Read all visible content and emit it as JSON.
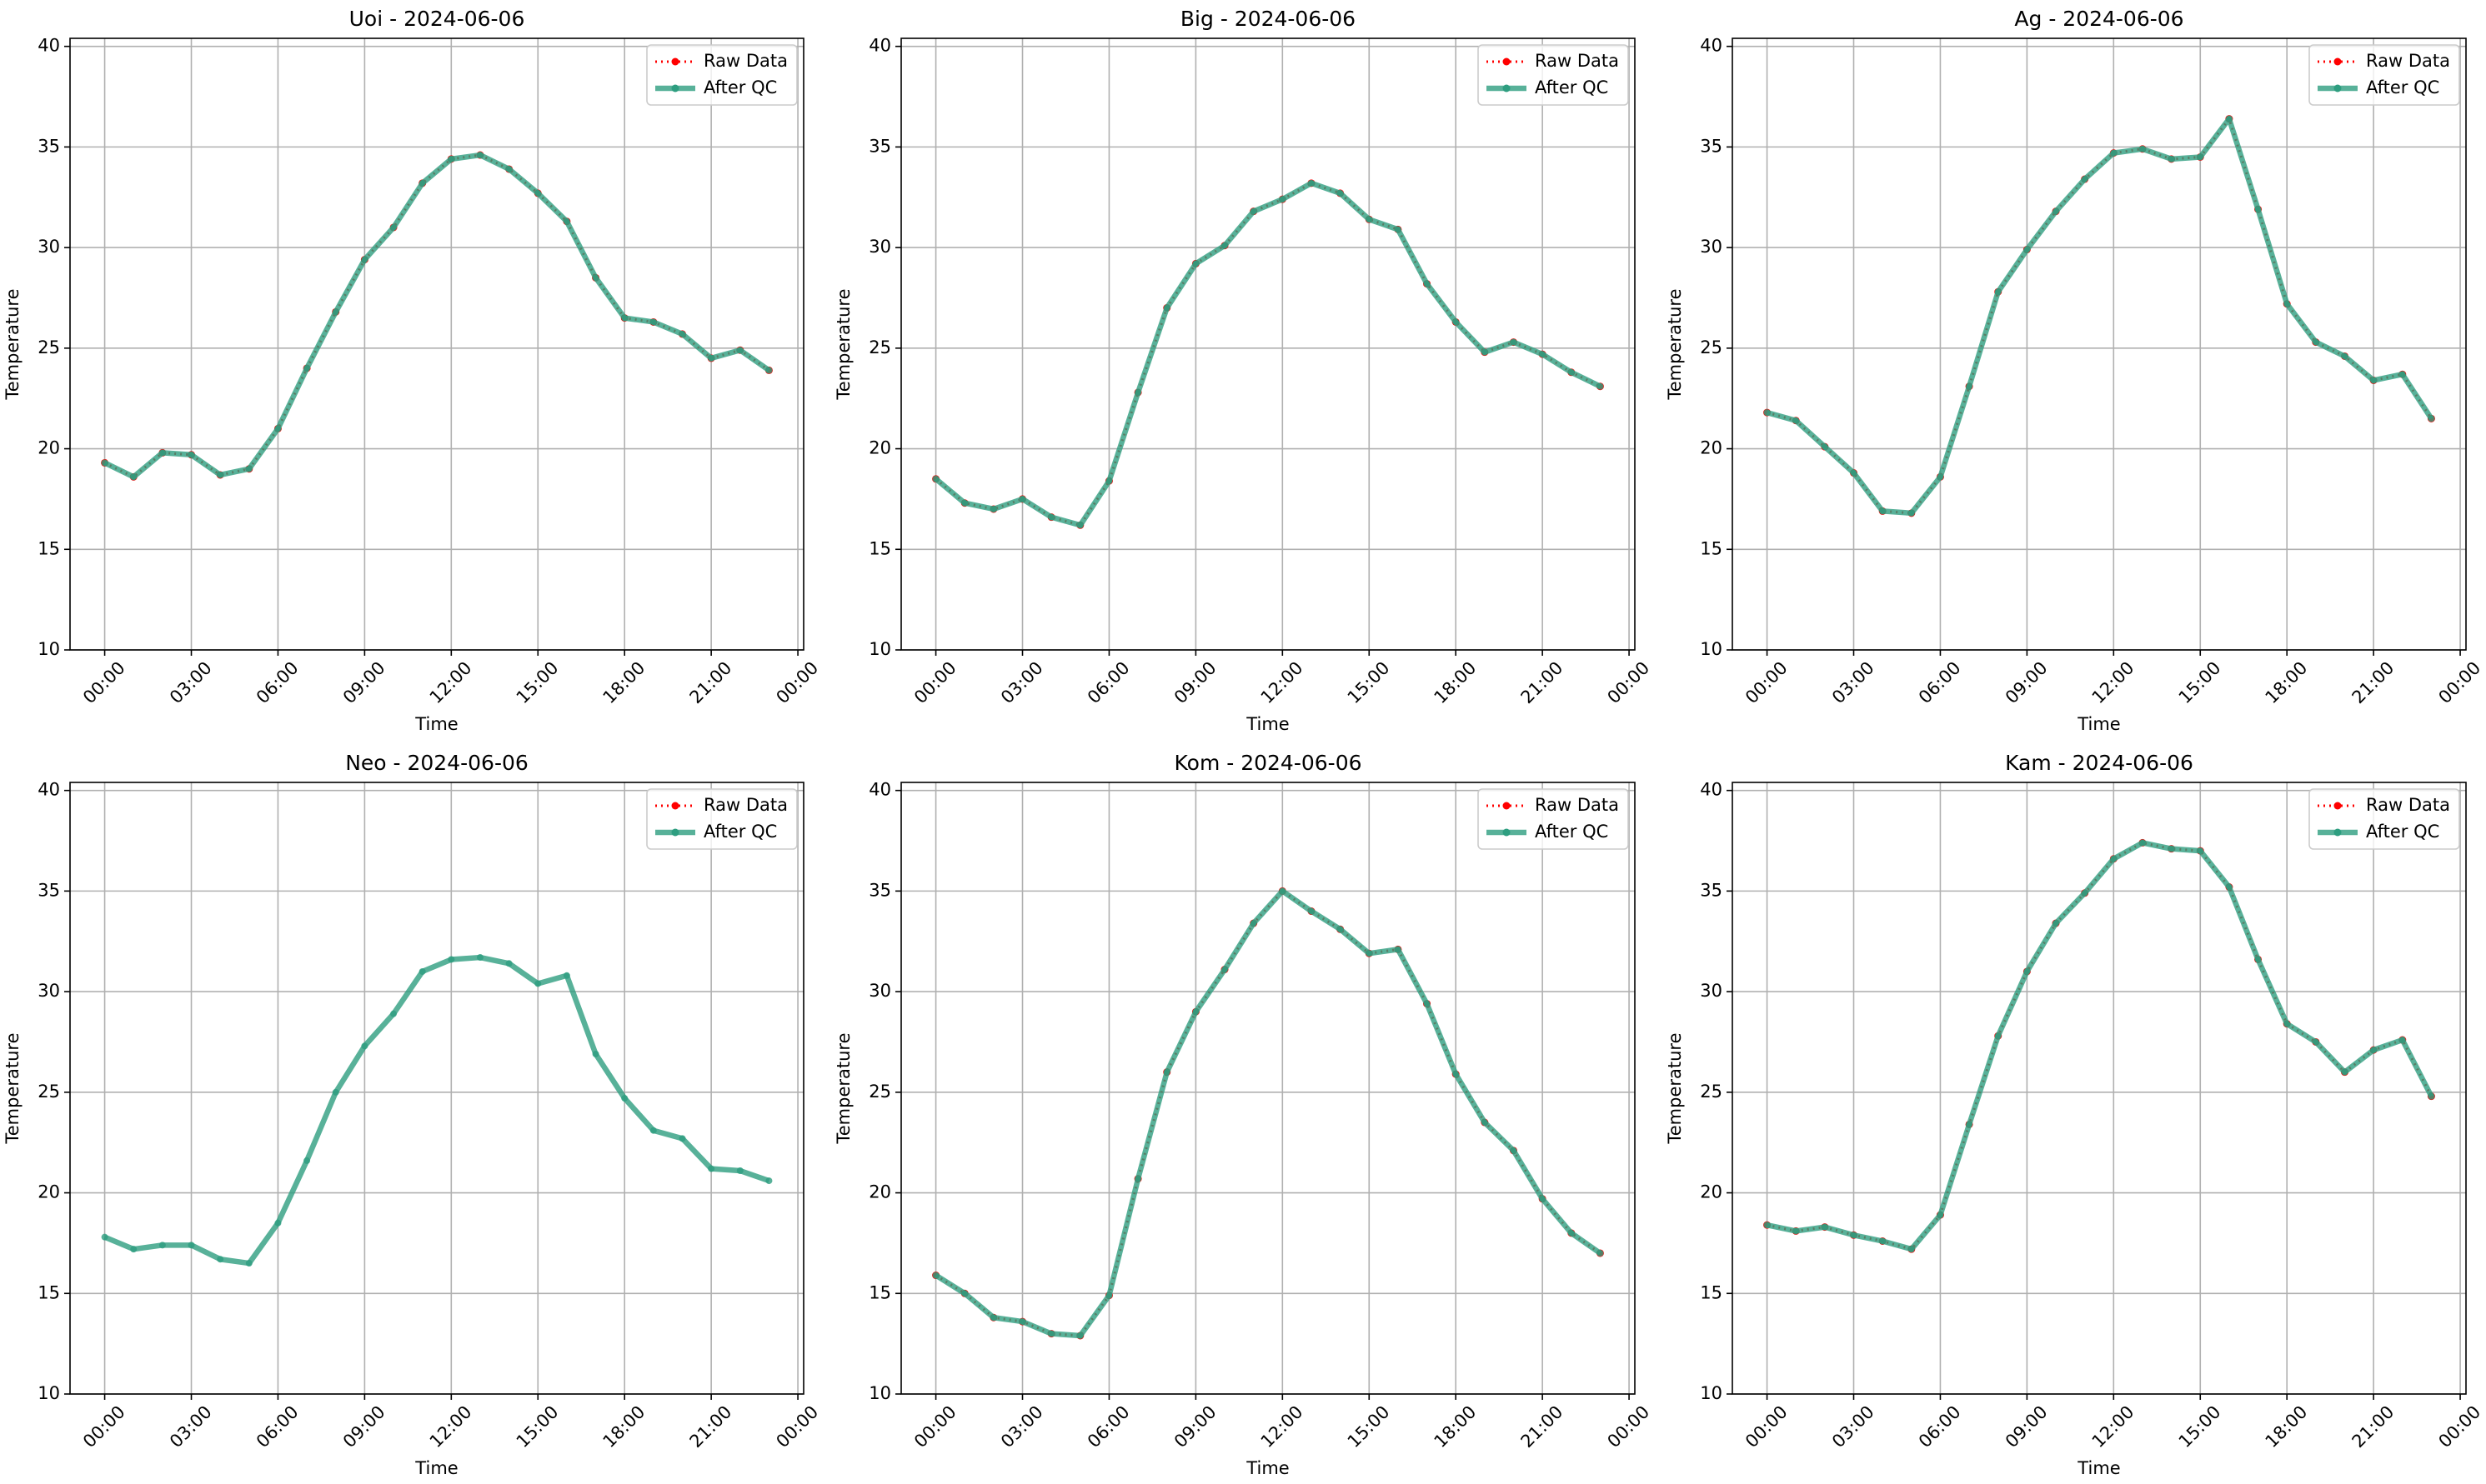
{
  "chart_data": [
    {
      "type": "line",
      "title": "Uoi - 2024-06-06",
      "xlabel": "Time",
      "ylabel": "Temperature",
      "x": [
        0,
        1,
        2,
        3,
        4,
        5,
        6,
        7,
        8,
        9,
        10,
        11,
        12,
        13,
        14,
        15,
        16,
        17,
        18,
        19,
        20,
        21,
        22,
        23
      ],
      "series": [
        {
          "name": "Raw Data",
          "color": "#ff0000",
          "style": "dotted",
          "values": [
            19.3,
            18.6,
            19.8,
            19.7,
            18.7,
            19.0,
            21.0,
            24.0,
            26.8,
            29.4,
            31.0,
            33.2,
            34.4,
            34.6,
            33.9,
            32.7,
            31.3,
            28.5,
            26.5,
            26.3,
            25.7,
            24.5,
            24.9,
            23.9
          ]
        },
        {
          "name": "After QC",
          "color": "#2e9e80",
          "style": "solid",
          "values": [
            19.3,
            18.6,
            19.8,
            19.7,
            18.7,
            19.0,
            21.0,
            24.0,
            26.8,
            29.4,
            31.0,
            33.2,
            34.4,
            34.6,
            33.9,
            32.7,
            31.3,
            28.5,
            26.5,
            26.3,
            25.7,
            24.5,
            24.9,
            23.9
          ]
        }
      ],
      "xlim": [
        -1.2,
        24.2
      ],
      "xticks": [
        {
          "value": 0,
          "label": "00:00"
        },
        {
          "value": 3,
          "label": "03:00"
        },
        {
          "value": 6,
          "label": "06:00"
        },
        {
          "value": 9,
          "label": "09:00"
        },
        {
          "value": 12,
          "label": "12:00"
        },
        {
          "value": 15,
          "label": "15:00"
        },
        {
          "value": 18,
          "label": "18:00"
        },
        {
          "value": 21,
          "label": "21:00"
        },
        {
          "value": 24,
          "label": "00:00"
        }
      ],
      "ylim": [
        10,
        40.4
      ],
      "yticks": [
        10,
        15,
        20,
        25,
        30,
        35,
        40
      ],
      "grid": true,
      "legend": "upper right"
    },
    {
      "type": "line",
      "title": "Big - 2024-06-06",
      "xlabel": "Time",
      "ylabel": "Temperature",
      "x": [
        0,
        1,
        2,
        3,
        4,
        5,
        6,
        7,
        8,
        9,
        10,
        11,
        12,
        13,
        14,
        15,
        16,
        17,
        18,
        19,
        20,
        21,
        22,
        23
      ],
      "series": [
        {
          "name": "Raw Data",
          "color": "#ff0000",
          "style": "dotted",
          "values": [
            18.5,
            17.3,
            17.0,
            17.5,
            16.6,
            16.2,
            18.4,
            22.8,
            27.0,
            29.2,
            30.1,
            31.8,
            32.4,
            33.2,
            32.7,
            31.4,
            30.9,
            28.2,
            26.3,
            24.8,
            25.3,
            24.7,
            23.8,
            23.1
          ]
        },
        {
          "name": "After QC",
          "color": "#2e9e80",
          "style": "solid",
          "values": [
            18.5,
            17.3,
            17.0,
            17.5,
            16.6,
            16.2,
            18.4,
            22.8,
            27.0,
            29.2,
            30.1,
            31.8,
            32.4,
            33.2,
            32.7,
            31.4,
            30.9,
            28.2,
            26.3,
            24.8,
            25.3,
            24.7,
            23.8,
            23.1
          ]
        }
      ],
      "xlim": [
        -1.2,
        24.2
      ],
      "xticks": [
        {
          "value": 0,
          "label": "00:00"
        },
        {
          "value": 3,
          "label": "03:00"
        },
        {
          "value": 6,
          "label": "06:00"
        },
        {
          "value": 9,
          "label": "09:00"
        },
        {
          "value": 12,
          "label": "12:00"
        },
        {
          "value": 15,
          "label": "15:00"
        },
        {
          "value": 18,
          "label": "18:00"
        },
        {
          "value": 21,
          "label": "21:00"
        },
        {
          "value": 24,
          "label": "00:00"
        }
      ],
      "ylim": [
        10,
        40.4
      ],
      "yticks": [
        10,
        15,
        20,
        25,
        30,
        35,
        40
      ],
      "grid": true,
      "legend": "upper right"
    },
    {
      "type": "line",
      "title": "Ag - 2024-06-06",
      "xlabel": "Time",
      "ylabel": "Temperature",
      "x": [
        0,
        1,
        2,
        3,
        4,
        5,
        6,
        7,
        8,
        9,
        10,
        11,
        12,
        13,
        14,
        15,
        16,
        17,
        18,
        19,
        20,
        21,
        22,
        23
      ],
      "series": [
        {
          "name": "Raw Data",
          "color": "#ff0000",
          "style": "dotted",
          "values": [
            21.8,
            21.4,
            20.1,
            18.8,
            16.9,
            16.8,
            18.6,
            23.1,
            27.8,
            29.9,
            31.8,
            33.4,
            34.7,
            34.9,
            34.4,
            34.5,
            36.4,
            31.9,
            27.2,
            25.3,
            24.6,
            23.4,
            23.7,
            21.5
          ]
        },
        {
          "name": "After QC",
          "color": "#2e9e80",
          "style": "solid",
          "values": [
            21.8,
            21.4,
            20.1,
            18.8,
            16.9,
            16.8,
            18.6,
            23.1,
            27.8,
            29.9,
            31.8,
            33.4,
            34.7,
            34.9,
            34.4,
            34.5,
            36.4,
            31.9,
            27.2,
            25.3,
            24.6,
            23.4,
            23.7,
            21.5
          ]
        }
      ],
      "xlim": [
        -1.2,
        24.2
      ],
      "xticks": [
        {
          "value": 0,
          "label": "00:00"
        },
        {
          "value": 3,
          "label": "03:00"
        },
        {
          "value": 6,
          "label": "06:00"
        },
        {
          "value": 9,
          "label": "09:00"
        },
        {
          "value": 12,
          "label": "12:00"
        },
        {
          "value": 15,
          "label": "15:00"
        },
        {
          "value": 18,
          "label": "18:00"
        },
        {
          "value": 21,
          "label": "21:00"
        },
        {
          "value": 24,
          "label": "00:00"
        }
      ],
      "ylim": [
        10,
        40.4
      ],
      "yticks": [
        10,
        15,
        20,
        25,
        30,
        35,
        40
      ],
      "grid": true,
      "legend": "upper right"
    },
    {
      "type": "line",
      "title": "Neo - 2024-06-06",
      "xlabel": "Time",
      "ylabel": "Temperature",
      "x": [
        0,
        1,
        2,
        3,
        4,
        5,
        6,
        7,
        8,
        9,
        10,
        11,
        12,
        13,
        14,
        15,
        16,
        17,
        18,
        19,
        20,
        21,
        22,
        23
      ],
      "series": [
        {
          "name": "Raw Data",
          "color": "#ff0000",
          "style": "dotted",
          "values": [
            null,
            null,
            null,
            null,
            null,
            null,
            null,
            null,
            null,
            null,
            null,
            null,
            null,
            null,
            null,
            null,
            null,
            null,
            null,
            null,
            null,
            null,
            null,
            null
          ]
        },
        {
          "name": "After QC",
          "color": "#2e9e80",
          "style": "solid",
          "values": [
            17.8,
            17.2,
            17.4,
            17.4,
            16.7,
            16.5,
            18.5,
            21.6,
            25.0,
            27.3,
            28.9,
            31.0,
            31.6,
            31.7,
            31.4,
            30.4,
            30.8,
            26.9,
            24.7,
            23.1,
            22.7,
            21.2,
            21.1,
            20.6
          ]
        }
      ],
      "xlim": [
        -1.2,
        24.2
      ],
      "xticks": [
        {
          "value": 0,
          "label": "00:00"
        },
        {
          "value": 3,
          "label": "03:00"
        },
        {
          "value": 6,
          "label": "06:00"
        },
        {
          "value": 9,
          "label": "09:00"
        },
        {
          "value": 12,
          "label": "12:00"
        },
        {
          "value": 15,
          "label": "15:00"
        },
        {
          "value": 18,
          "label": "18:00"
        },
        {
          "value": 21,
          "label": "21:00"
        },
        {
          "value": 24,
          "label": "00:00"
        }
      ],
      "ylim": [
        10,
        40.4
      ],
      "yticks": [
        10,
        15,
        20,
        25,
        30,
        35,
        40
      ],
      "grid": true,
      "legend": "upper right"
    },
    {
      "type": "line",
      "title": "Kom - 2024-06-06",
      "xlabel": "Time",
      "ylabel": "Temperature",
      "x": [
        0,
        1,
        2,
        3,
        4,
        5,
        6,
        7,
        8,
        9,
        10,
        11,
        12,
        13,
        14,
        15,
        16,
        17,
        18,
        19,
        20,
        21,
        22,
        23
      ],
      "series": [
        {
          "name": "Raw Data",
          "color": "#ff0000",
          "style": "dotted",
          "values": [
            15.9,
            15.0,
            13.8,
            13.6,
            13.0,
            12.9,
            14.9,
            20.7,
            26.0,
            29.0,
            31.1,
            33.4,
            35.0,
            34.0,
            33.1,
            31.9,
            32.1,
            29.4,
            25.9,
            23.5,
            22.1,
            19.7,
            18.0,
            17.0
          ]
        },
        {
          "name": "After QC",
          "color": "#2e9e80",
          "style": "solid",
          "values": [
            15.9,
            15.0,
            13.8,
            13.6,
            13.0,
            12.9,
            14.9,
            20.7,
            26.0,
            29.0,
            31.1,
            33.4,
            35.0,
            34.0,
            33.1,
            31.9,
            32.1,
            29.4,
            25.9,
            23.5,
            22.1,
            19.7,
            18.0,
            17.0
          ]
        }
      ],
      "xlim": [
        -1.2,
        24.2
      ],
      "xticks": [
        {
          "value": 0,
          "label": "00:00"
        },
        {
          "value": 3,
          "label": "03:00"
        },
        {
          "value": 6,
          "label": "06:00"
        },
        {
          "value": 9,
          "label": "09:00"
        },
        {
          "value": 12,
          "label": "12:00"
        },
        {
          "value": 15,
          "label": "15:00"
        },
        {
          "value": 18,
          "label": "18:00"
        },
        {
          "value": 21,
          "label": "21:00"
        },
        {
          "value": 24,
          "label": "00:00"
        }
      ],
      "ylim": [
        10,
        40.4
      ],
      "yticks": [
        10,
        15,
        20,
        25,
        30,
        35,
        40
      ],
      "grid": true,
      "legend": "upper right"
    },
    {
      "type": "line",
      "title": "Kam - 2024-06-06",
      "xlabel": "Time",
      "ylabel": "Temperature",
      "x": [
        0,
        1,
        2,
        3,
        4,
        5,
        6,
        7,
        8,
        9,
        10,
        11,
        12,
        13,
        14,
        15,
        16,
        17,
        18,
        19,
        20,
        21,
        22,
        23
      ],
      "series": [
        {
          "name": "Raw Data",
          "color": "#ff0000",
          "style": "dotted",
          "values": [
            18.4,
            18.1,
            18.3,
            17.9,
            17.6,
            17.2,
            18.9,
            23.4,
            27.8,
            31.0,
            33.4,
            34.9,
            36.6,
            37.4,
            37.1,
            37.0,
            35.2,
            31.6,
            28.4,
            27.5,
            26.0,
            27.1,
            27.6,
            24.8
          ]
        },
        {
          "name": "After QC",
          "color": "#2e9e80",
          "style": "solid",
          "values": [
            18.4,
            18.1,
            18.3,
            17.9,
            17.6,
            17.2,
            18.9,
            23.4,
            27.8,
            31.0,
            33.4,
            34.9,
            36.6,
            37.4,
            37.1,
            37.0,
            35.2,
            31.6,
            28.4,
            27.5,
            26.0,
            27.1,
            27.6,
            24.8
          ]
        }
      ],
      "xlim": [
        -1.2,
        24.2
      ],
      "xticks": [
        {
          "value": 0,
          "label": "00:00"
        },
        {
          "value": 3,
          "label": "03:00"
        },
        {
          "value": 6,
          "label": "06:00"
        },
        {
          "value": 9,
          "label": "09:00"
        },
        {
          "value": 12,
          "label": "12:00"
        },
        {
          "value": 15,
          "label": "15:00"
        },
        {
          "value": 18,
          "label": "18:00"
        },
        {
          "value": 21,
          "label": "21:00"
        },
        {
          "value": 24,
          "label": "00:00"
        }
      ],
      "ylim": [
        10,
        40.4
      ],
      "yticks": [
        10,
        15,
        20,
        25,
        30,
        35,
        40
      ],
      "grid": true,
      "legend": "upper right"
    }
  ]
}
